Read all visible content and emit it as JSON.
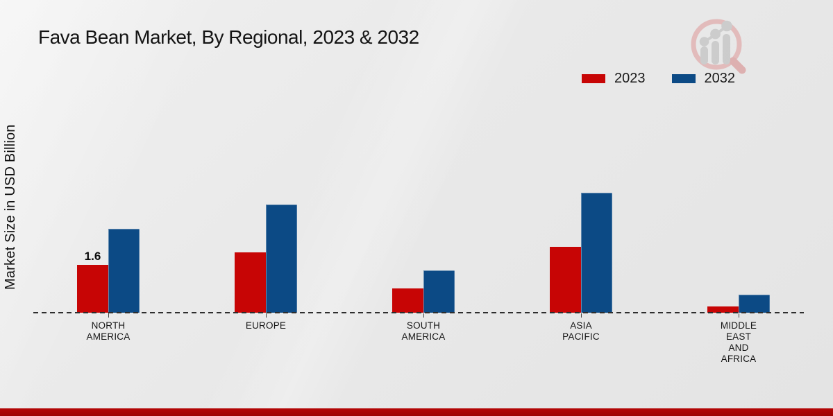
{
  "title": "Fava Bean Market, By Regional, 2023 & 2032",
  "y_axis_label": "Market Size in USD Billion",
  "legend": {
    "items": [
      {
        "label": "2023",
        "color": "#c70505"
      },
      {
        "label": "2032",
        "color": "#0c4a85"
      }
    ]
  },
  "logo": {
    "name": "magnifier-growth-chart-logo",
    "ring_color": "#e2b7b7",
    "bars_color": "#c9c9c9"
  },
  "footer": {
    "color_top": "#b40606",
    "color_bottom": "#9e0303"
  },
  "chart_data": {
    "type": "bar",
    "categories": [
      "NORTH AMERICA",
      "EUROPE",
      "SOUTH AMERICA",
      "ASIA PACIFIC",
      "MIDDLE EAST AND AFRICA"
    ],
    "category_lines": [
      [
        "NORTH",
        "AMERICA"
      ],
      [
        "EUROPE"
      ],
      [
        "SOUTH",
        "AMERICA"
      ],
      [
        "ASIA",
        "PACIFIC"
      ],
      [
        "MIDDLE",
        "EAST",
        "AND",
        "AFRICA"
      ]
    ],
    "series": [
      {
        "name": "2023",
        "color": "#c70505",
        "values": [
          1.6,
          2.0,
          0.8,
          2.2,
          0.2
        ]
      },
      {
        "name": "2032",
        "color": "#0c4a85",
        "values": [
          2.8,
          3.6,
          1.4,
          4.0,
          0.6
        ]
      }
    ],
    "data_labels": [
      {
        "series_index": 0,
        "category_index": 0,
        "text": "1.6"
      }
    ],
    "title": "Fava Bean Market, By Regional, 2023 & 2032",
    "xlabel": "",
    "ylabel": "Market Size in USD Billion",
    "ylim": [
      0,
      4.5
    ],
    "grid": false,
    "baseline_style": "dashed",
    "legend_position": "top-right"
  }
}
